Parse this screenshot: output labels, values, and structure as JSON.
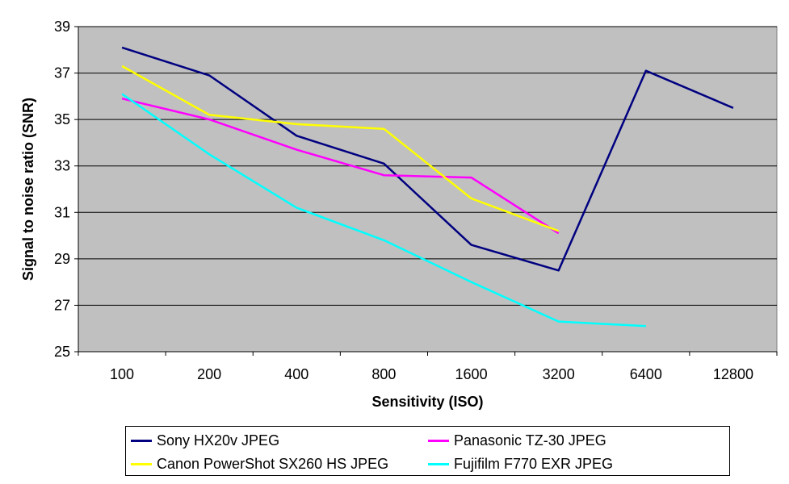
{
  "chart_data": {
    "type": "line",
    "title": "",
    "xlabel": "Sensitivity (ISO)",
    "ylabel": "Signal to noise ratio (SNR)",
    "categories": [
      "100",
      "200",
      "400",
      "800",
      "1600",
      "3200",
      "6400",
      "12800"
    ],
    "ylim": [
      25,
      39
    ],
    "yticks": [
      "25",
      "27",
      "29",
      "31",
      "33",
      "35",
      "37",
      "39"
    ],
    "grid": true,
    "background": "#c0c0c0",
    "legend_position": "bottom",
    "series": [
      {
        "name": "Sony HX20v JPEG",
        "color": "#000080",
        "values": [
          38.1,
          36.9,
          34.3,
          33.1,
          29.6,
          28.5,
          37.1,
          35.5
        ]
      },
      {
        "name": "Panasonic TZ-30 JPEG",
        "color": "#ff00ff",
        "values": [
          35.9,
          35.0,
          33.7,
          32.6,
          32.5,
          30.1,
          null,
          null
        ]
      },
      {
        "name": "Canon PowerShot SX260 HS JPEG",
        "color": "#ffff00",
        "values": [
          37.3,
          35.2,
          34.8,
          34.6,
          31.6,
          30.2,
          null,
          null
        ]
      },
      {
        "name": "Fujifilm F770 EXR JPEG",
        "color": "#00ffff",
        "values": [
          36.1,
          33.5,
          31.2,
          29.8,
          28.0,
          26.3,
          26.1,
          null
        ]
      }
    ]
  }
}
